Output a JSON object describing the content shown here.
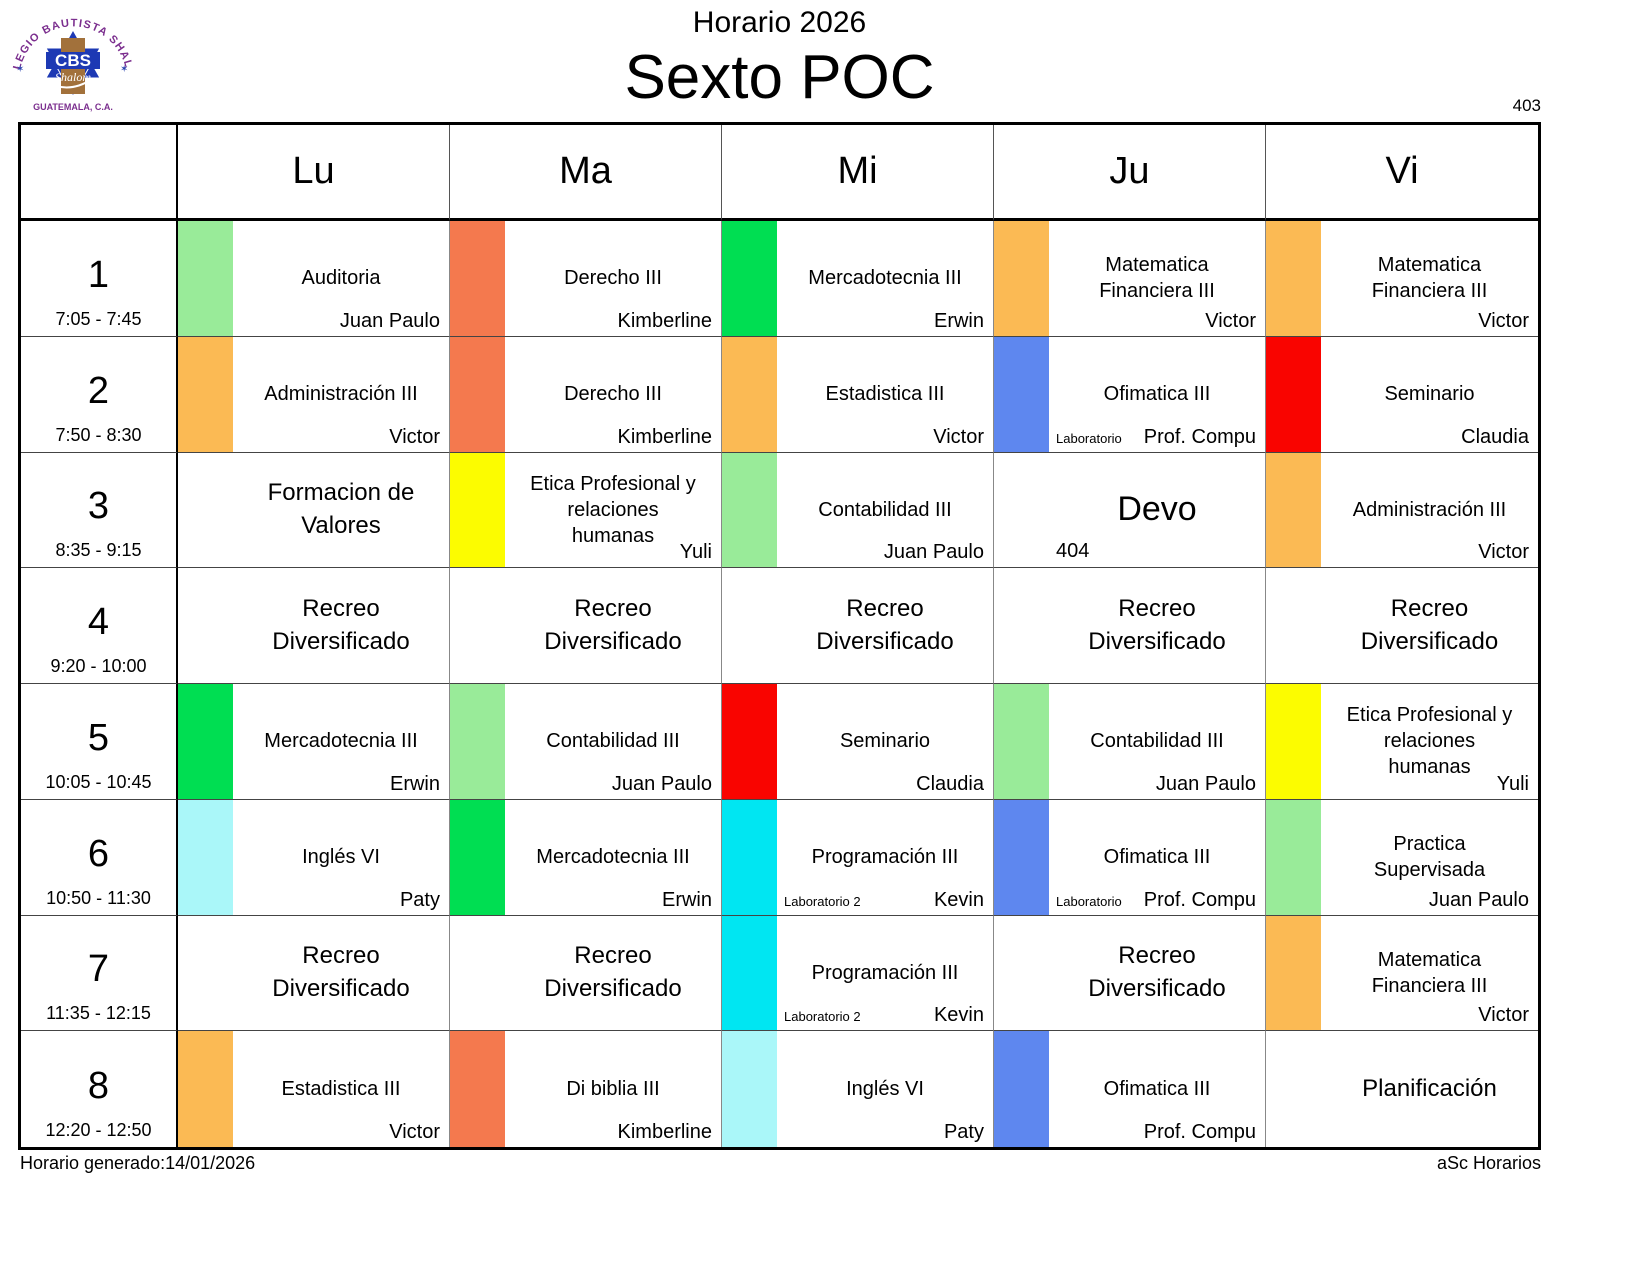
{
  "page": {
    "title_small": "Horario 2026",
    "title_big": "Sexto POC",
    "page_number": "403",
    "footer_left": "Horario generado:14/01/2026",
    "footer_right": "aSc Horarios"
  },
  "logo": {
    "arc_text": "COLEGIO BAUTISTA SHALOM",
    "acronym": "CBS",
    "script_text": "Shalom",
    "country_text": "GUATEMALA, C.A."
  },
  "colors": {
    "lightgreen": "#99EB99",
    "salmon": "#F4794E",
    "green": "#00DE52",
    "orange": "#FBBA54",
    "blue": "#5E87EF",
    "red": "#F90400",
    "yellow": "#FCFC00",
    "cyan": "#00E6F2",
    "lightcyan": "#AAF7F9"
  },
  "days": [
    "Lu",
    "Ma",
    "Mi",
    "Ju",
    "Vi"
  ],
  "rows": [
    {
      "num": "1",
      "time": "7:05 - 7:45",
      "cells": [
        {
          "subject": "Auditoria",
          "teacher": "Juan Paulo",
          "stripe": "lightgreen"
        },
        {
          "subject": "Derecho III",
          "teacher": "Kimberline",
          "stripe": "salmon"
        },
        {
          "subject": "Mercadotecnia III",
          "teacher": "Erwin",
          "stripe": "green"
        },
        {
          "subject": "Matematica\nFinanciera III",
          "teacher": "Victor",
          "stripe": "orange"
        },
        {
          "subject": "Matematica\nFinanciera III",
          "teacher": "Victor",
          "stripe": "orange"
        }
      ]
    },
    {
      "num": "2",
      "time": "7:50 - 8:30",
      "cells": [
        {
          "subject": "Administración III",
          "teacher": "Victor",
          "stripe": "orange"
        },
        {
          "subject": "Derecho III",
          "teacher": "Kimberline",
          "stripe": "salmon"
        },
        {
          "subject": "Estadistica III",
          "teacher": "Victor",
          "stripe": "orange"
        },
        {
          "subject": "Ofimatica III",
          "teacher": "Prof. Compu",
          "stripe": "blue",
          "note": "Laboratorio",
          "note_small": true
        },
        {
          "subject": "Seminario",
          "teacher": "Claudia",
          "stripe": "red"
        }
      ]
    },
    {
      "num": "3",
      "time": "8:35 - 9:15",
      "cells": [
        {
          "subject": "Formacion de\nValores",
          "big": true
        },
        {
          "subject": "Etica Profesional y\nrelaciones\nhumanas",
          "teacher": "Yuli",
          "stripe": "yellow"
        },
        {
          "subject": "Contabilidad III",
          "teacher": "Juan Paulo",
          "stripe": "lightgreen"
        },
        {
          "subject": "Devo",
          "big": true,
          "fs": 34,
          "note": "404"
        },
        {
          "subject": "Administración III",
          "teacher": "Victor",
          "stripe": "orange"
        }
      ]
    },
    {
      "num": "4",
      "time": "9:20 - 10:00",
      "cells": [
        {
          "subject": "Recreo\nDiversificado",
          "big": true
        },
        {
          "subject": "Recreo\nDiversificado",
          "big": true
        },
        {
          "subject": "Recreo\nDiversificado",
          "big": true
        },
        {
          "subject": "Recreo\nDiversificado",
          "big": true
        },
        {
          "subject": "Recreo\nDiversificado",
          "big": true
        }
      ]
    },
    {
      "num": "5",
      "time": "10:05 - 10:45",
      "cells": [
        {
          "subject": "Mercadotecnia III",
          "teacher": "Erwin",
          "stripe": "green"
        },
        {
          "subject": "Contabilidad III",
          "teacher": "Juan Paulo",
          "stripe": "lightgreen"
        },
        {
          "subject": "Seminario",
          "teacher": "Claudia",
          "stripe": "red"
        },
        {
          "subject": "Contabilidad III",
          "teacher": "Juan Paulo",
          "stripe": "lightgreen"
        },
        {
          "subject": "Etica Profesional y\nrelaciones\nhumanas",
          "teacher": "Yuli",
          "stripe": "yellow"
        }
      ]
    },
    {
      "num": "6",
      "time": "10:50 - 11:30",
      "cells": [
        {
          "subject": "Inglés VI",
          "teacher": "Paty",
          "stripe": "lightcyan"
        },
        {
          "subject": "Mercadotecnia III",
          "teacher": "Erwin",
          "stripe": "green"
        },
        {
          "subject": "Programación III",
          "teacher": "Kevin",
          "stripe": "cyan",
          "note": "Laboratorio 2",
          "note_small": true
        },
        {
          "subject": "Ofimatica III",
          "teacher": "Prof. Compu",
          "stripe": "blue",
          "note": "Laboratorio",
          "note_small": true
        },
        {
          "subject": "Practica\nSupervisada",
          "teacher": "Juan Paulo",
          "stripe": "lightgreen"
        }
      ]
    },
    {
      "num": "7",
      "time": "11:35 - 12:15",
      "cells": [
        {
          "subject": "Recreo\nDiversificado",
          "big": true
        },
        {
          "subject": "Recreo\nDiversificado",
          "big": true
        },
        {
          "subject": "Programación III",
          "teacher": "Kevin",
          "stripe": "cyan",
          "note": "Laboratorio 2",
          "note_small": true
        },
        {
          "subject": "Recreo\nDiversificado",
          "big": true
        },
        {
          "subject": "Matematica\nFinanciera III",
          "teacher": "Victor",
          "stripe": "orange"
        }
      ]
    },
    {
      "num": "8",
      "time": "12:20 - 12:50",
      "cells": [
        {
          "subject": "Estadistica III",
          "teacher": "Victor",
          "stripe": "orange"
        },
        {
          "subject": "Di biblia III",
          "teacher": "Kimberline",
          "stripe": "salmon"
        },
        {
          "subject": "Inglés VI",
          "teacher": "Paty",
          "stripe": "lightcyan"
        },
        {
          "subject": "Ofimatica III",
          "teacher": "Prof. Compu",
          "stripe": "blue"
        },
        {
          "subject": "Planificación",
          "big": true
        }
      ]
    }
  ]
}
